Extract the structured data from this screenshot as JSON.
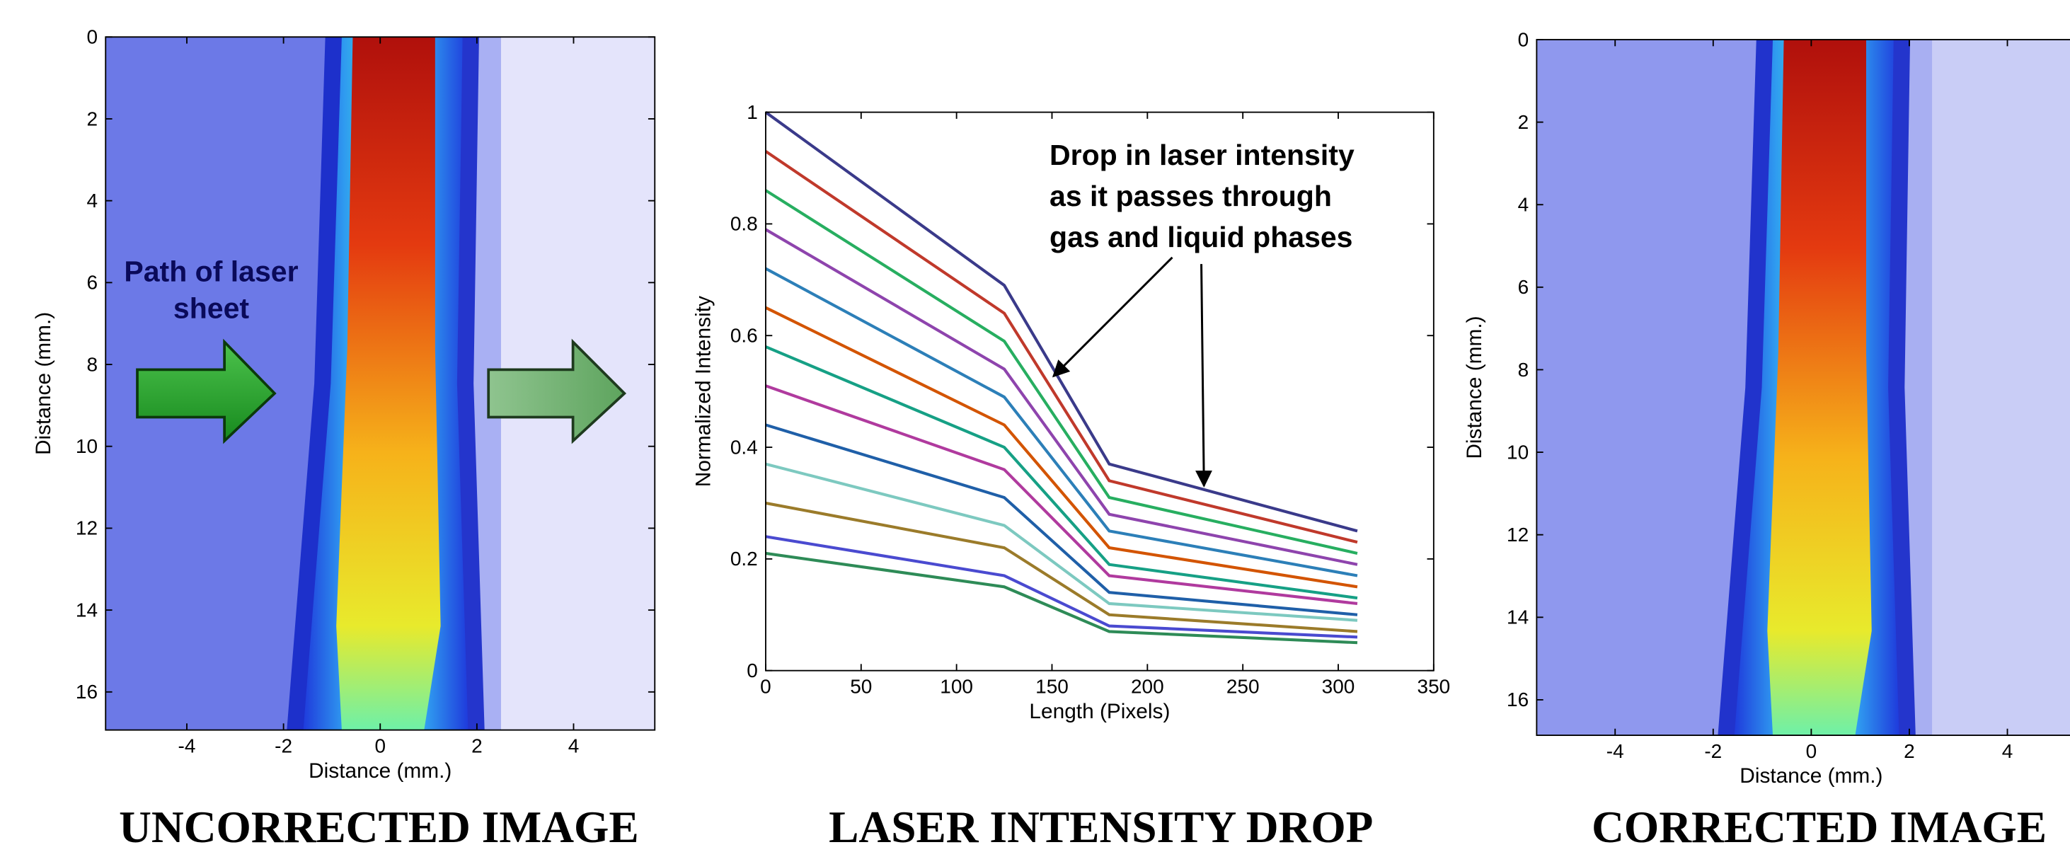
{
  "chart_data": [
    {
      "type": "image",
      "title": "UNCORRECTED IMAGE",
      "x_label": "Distance (mm.)",
      "y_label": "Distance (mm.)",
      "xlim": [
        -5.68,
        5.68
      ],
      "ylim": [
        0,
        16.93
      ],
      "y_inverted": true,
      "xticks": [
        -4,
        -2,
        0,
        2,
        4
      ],
      "yticks": [
        0,
        2,
        4,
        6,
        8,
        10,
        12,
        14,
        16
      ],
      "annotation": [
        "Path of laser",
        "sheet"
      ],
      "corrected": false
    },
    {
      "type": "line",
      "title": "LASER INTENSITY DROP",
      "x_label": "Length (Pixels)",
      "y_label": "Normalized Intensity",
      "xlim": [
        0,
        350
      ],
      "ylim": [
        0,
        1
      ],
      "xticks": [
        0,
        50,
        100,
        150,
        200,
        250,
        300,
        350
      ],
      "yticks": [
        0,
        0.2,
        0.4,
        0.6,
        0.8,
        1
      ],
      "annotation": [
        "Drop in laser intensity",
        "as it passes through",
        "gas and liquid phases"
      ],
      "x": [
        0,
        125,
        180,
        310
      ],
      "series": [
        {
          "color": "#3a3a8a",
          "values": [
            1.0,
            0.69,
            0.37,
            0.25
          ]
        },
        {
          "color": "#c0392b",
          "values": [
            0.93,
            0.64,
            0.34,
            0.23
          ]
        },
        {
          "color": "#27ae60",
          "values": [
            0.86,
            0.59,
            0.31,
            0.21
          ]
        },
        {
          "color": "#8e44ad",
          "values": [
            0.79,
            0.54,
            0.28,
            0.19
          ]
        },
        {
          "color": "#2c7fb8",
          "values": [
            0.72,
            0.49,
            0.25,
            0.17
          ]
        },
        {
          "color": "#d35400",
          "values": [
            0.65,
            0.44,
            0.22,
            0.15
          ]
        },
        {
          "color": "#16a085",
          "values": [
            0.58,
            0.4,
            0.19,
            0.13
          ]
        },
        {
          "color": "#b03a9e",
          "values": [
            0.51,
            0.36,
            0.17,
            0.12
          ]
        },
        {
          "color": "#1f5fa8",
          "values": [
            0.44,
            0.31,
            0.14,
            0.1
          ]
        },
        {
          "color": "#7dc9c0",
          "values": [
            0.37,
            0.26,
            0.12,
            0.09
          ]
        },
        {
          "color": "#9b7b2a",
          "values": [
            0.3,
            0.22,
            0.1,
            0.07
          ]
        },
        {
          "color": "#4a4ad0",
          "values": [
            0.24,
            0.17,
            0.08,
            0.06
          ]
        },
        {
          "color": "#2e8b57",
          "values": [
            0.21,
            0.15,
            0.07,
            0.05
          ]
        }
      ]
    },
    {
      "type": "image",
      "title": "CORRECTED IMAGE",
      "x_label": "Distance (mm.)",
      "y_label": "Distance (mm.)",
      "xlim": [
        -5.6,
        5.6
      ],
      "ylim": [
        0,
        16.86
      ],
      "y_inverted": true,
      "xticks": [
        -4,
        -2,
        0,
        2,
        4
      ],
      "yticks": [
        0,
        2,
        4,
        6,
        8,
        10,
        12,
        14,
        16
      ],
      "corrected": true
    }
  ]
}
